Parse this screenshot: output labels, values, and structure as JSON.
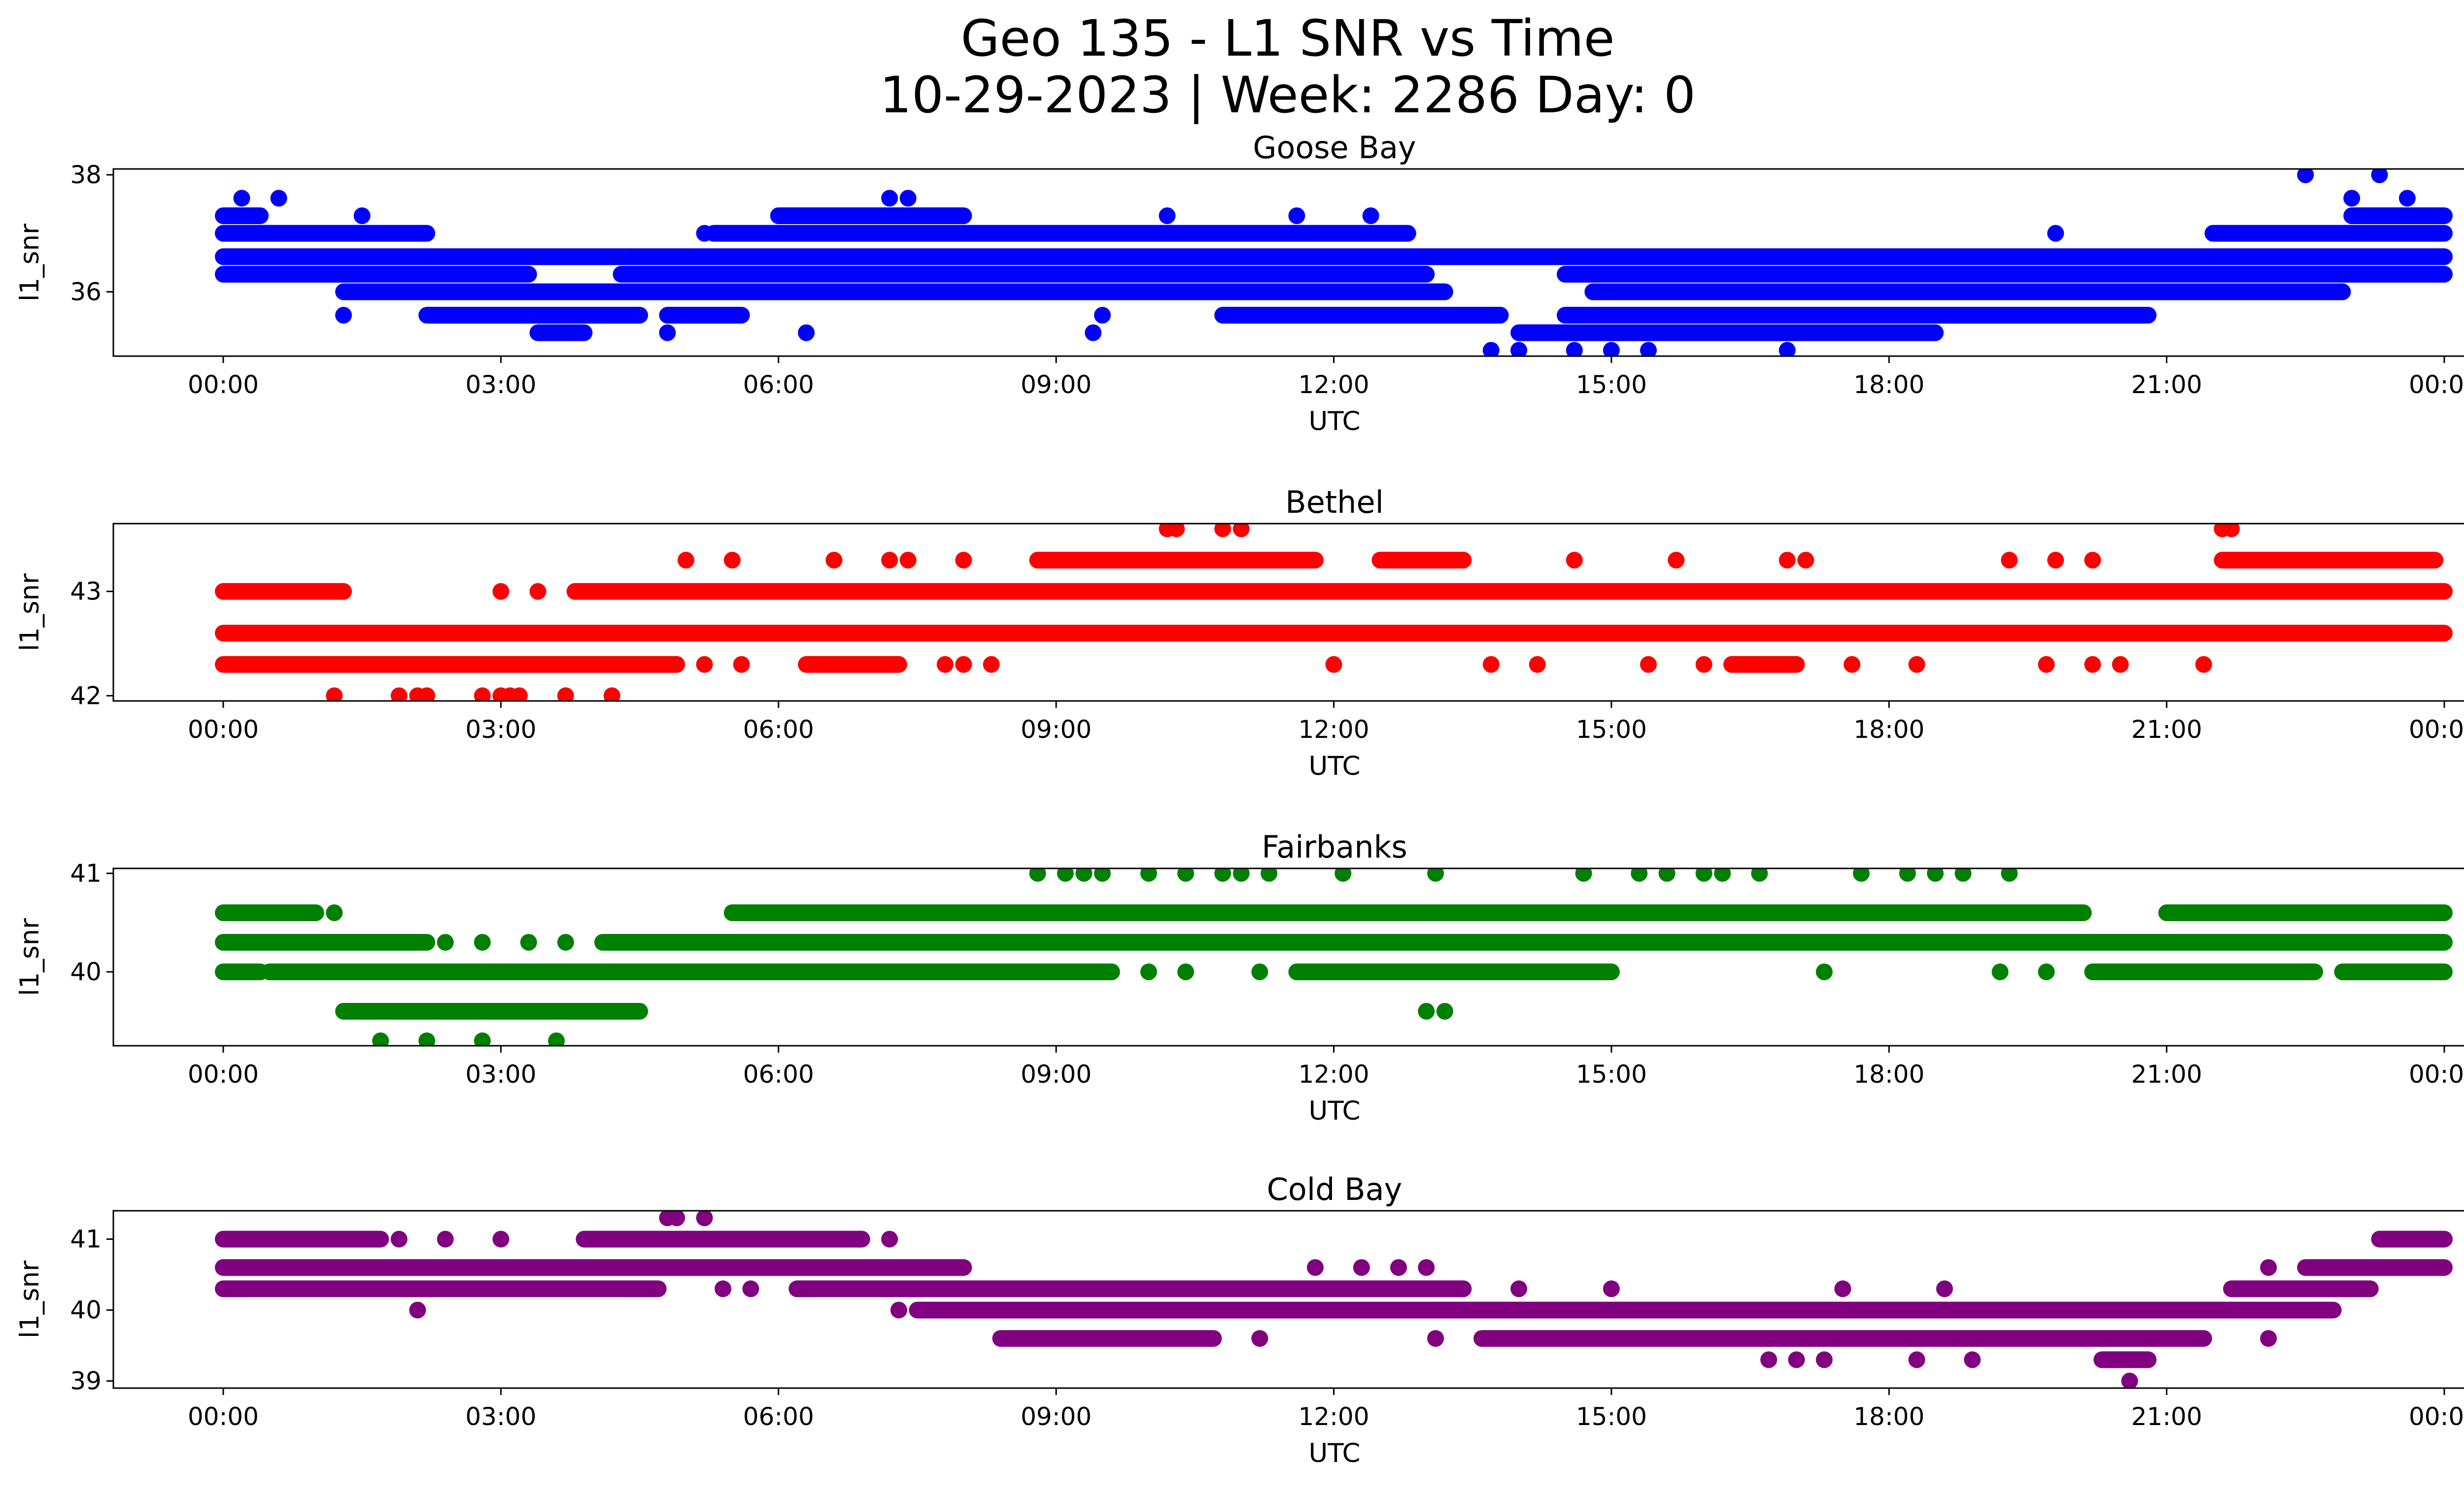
{
  "figure": {
    "title_line1": "Geo 135 - L1 SNR vs Time",
    "title_line2": "10-29-2023 | Week: 2286 Day: 0"
  },
  "chart_data": [
    {
      "type": "scatter",
      "title": "Goose Bay",
      "xlabel": "UTC",
      "ylabel": "l1_snr",
      "color": "#0000ff",
      "xlim": [
        "00:00",
        "24:00"
      ],
      "ylim": [
        34.9,
        38.1
      ],
      "x_ticks": [
        "00:00",
        "03:00",
        "06:00",
        "09:00",
        "12:00",
        "15:00",
        "18:00",
        "21:00",
        "00:00"
      ],
      "y_ticks": [
        36,
        38
      ],
      "x_unit": "hours UTC",
      "series": [
        {
          "levels": [
            {
              "y": 36.6,
              "segments": [
                [
                  0.0,
                  24.0
                ]
              ]
            },
            {
              "y": 36.3,
              "segments": [
                [
                  0.0,
                  3.3
                ],
                [
                  4.3,
                  13.0
                ],
                [
                  14.5,
                  24.0
                ]
              ]
            },
            {
              "y": 36.0,
              "segments": [
                [
                  1.3,
                  13.2
                ],
                [
                  14.8,
                  22.9
                ]
              ]
            },
            {
              "y": 35.6,
              "segments": [
                [
                  2.2,
                  4.5
                ],
                [
                  4.8,
                  5.6
                ],
                [
                  10.8,
                  13.8
                ],
                [
                  14.5,
                  20.8
                ]
              ]
            },
            {
              "y": 35.3,
              "segments": [
                [
                  3.4,
                  3.9
                ],
                [
                  14.0,
                  18.5
                ]
              ]
            },
            {
              "y": 37.0,
              "segments": [
                [
                  0.0,
                  2.2
                ],
                [
                  5.3,
                  12.8
                ],
                [
                  21.5,
                  24.0
                ]
              ]
            },
            {
              "y": 37.3,
              "segments": [
                [
                  0.0,
                  0.4
                ],
                [
                  6.0,
                  8.0
                ],
                [
                  23.0,
                  24.0
                ]
              ]
            }
          ],
          "points": [
            {
              "x": 0.2,
              "y": 37.6
            },
            {
              "x": 0.6,
              "y": 37.6
            },
            {
              "x": 1.5,
              "y": 37.3
            },
            {
              "x": 7.2,
              "y": 37.6
            },
            {
              "x": 7.4,
              "y": 37.6
            },
            {
              "x": 10.2,
              "y": 37.3
            },
            {
              "x": 11.6,
              "y": 37.3
            },
            {
              "x": 12.4,
              "y": 37.3
            },
            {
              "x": 13.7,
              "y": 35.0
            },
            {
              "x": 14.0,
              "y": 35.0
            },
            {
              "x": 14.6,
              "y": 35.0
            },
            {
              "x": 15.0,
              "y": 35.0
            },
            {
              "x": 15.4,
              "y": 35.0
            },
            {
              "x": 16.9,
              "y": 35.0
            },
            {
              "x": 22.5,
              "y": 38.0
            },
            {
              "x": 23.3,
              "y": 38.0
            },
            {
              "x": 23.0,
              "y": 37.6
            },
            {
              "x": 23.6,
              "y": 37.6
            },
            {
              "x": 3.7,
              "y": 35.3
            },
            {
              "x": 4.8,
              "y": 35.3
            },
            {
              "x": 6.3,
              "y": 35.3
            },
            {
              "x": 9.4,
              "y": 35.3
            },
            {
              "x": 9.5,
              "y": 35.6
            },
            {
              "x": 1.3,
              "y": 35.6
            },
            {
              "x": 4.4,
              "y": 36.6
            },
            {
              "x": 5.2,
              "y": 37.0
            },
            {
              "x": 19.8,
              "y": 37.0
            }
          ]
        }
      ]
    },
    {
      "type": "scatter",
      "title": "Bethel",
      "xlabel": "UTC",
      "ylabel": "l1_snr",
      "color": "#ff0000",
      "xlim": [
        "00:00",
        "24:00"
      ],
      "ylim": [
        41.95,
        43.65
      ],
      "x_ticks": [
        "00:00",
        "03:00",
        "06:00",
        "09:00",
        "12:00",
        "15:00",
        "18:00",
        "21:00",
        "00:00"
      ],
      "y_ticks": [
        42,
        43
      ],
      "x_unit": "hours UTC",
      "series": [
        {
          "levels": [
            {
              "y": 42.6,
              "segments": [
                [
                  0.0,
                  24.0
                ]
              ]
            },
            {
              "y": 43.0,
              "segments": [
                [
                  0.0,
                  1.3
                ],
                [
                  3.8,
                  24.0
                ]
              ]
            },
            {
              "y": 42.3,
              "segments": [
                [
                  0.0,
                  4.9
                ],
                [
                  6.3,
                  7.3
                ],
                [
                  16.3,
                  17.0
                ]
              ]
            },
            {
              "y": 43.3,
              "segments": [
                [
                  8.8,
                  11.8
                ],
                [
                  12.5,
                  13.4
                ],
                [
                  21.6,
                  23.9
                ]
              ]
            }
          ],
          "points": [
            {
              "x": 1.2,
              "y": 42.0
            },
            {
              "x": 1.9,
              "y": 42.0
            },
            {
              "x": 2.1,
              "y": 42.0
            },
            {
              "x": 2.2,
              "y": 42.0
            },
            {
              "x": 2.8,
              "y": 42.0
            },
            {
              "x": 3.0,
              "y": 42.0
            },
            {
              "x": 3.1,
              "y": 42.0
            },
            {
              "x": 3.2,
              "y": 42.0
            },
            {
              "x": 3.7,
              "y": 42.0
            },
            {
              "x": 4.2,
              "y": 42.0
            },
            {
              "x": 10.2,
              "y": 43.6
            },
            {
              "x": 10.3,
              "y": 43.6
            },
            {
              "x": 10.8,
              "y": 43.6
            },
            {
              "x": 11.0,
              "y": 43.6
            },
            {
              "x": 21.6,
              "y": 43.6
            },
            {
              "x": 21.7,
              "y": 43.6
            },
            {
              "x": 5.0,
              "y": 43.3
            },
            {
              "x": 5.5,
              "y": 43.3
            },
            {
              "x": 6.6,
              "y": 43.3
            },
            {
              "x": 7.2,
              "y": 43.3
            },
            {
              "x": 7.4,
              "y": 43.3
            },
            {
              "x": 8.0,
              "y": 43.3
            },
            {
              "x": 14.6,
              "y": 43.3
            },
            {
              "x": 15.7,
              "y": 43.3
            },
            {
              "x": 16.9,
              "y": 43.3
            },
            {
              "x": 17.1,
              "y": 43.3
            },
            {
              "x": 19.3,
              "y": 43.3
            },
            {
              "x": 19.8,
              "y": 43.3
            },
            {
              "x": 20.2,
              "y": 43.3
            },
            {
              "x": 3.0,
              "y": 43.0
            },
            {
              "x": 3.4,
              "y": 43.0
            },
            {
              "x": 5.2,
              "y": 42.3
            },
            {
              "x": 5.6,
              "y": 42.3
            },
            {
              "x": 7.8,
              "y": 42.3
            },
            {
              "x": 8.0,
              "y": 42.3
            },
            {
              "x": 8.3,
              "y": 42.3
            },
            {
              "x": 12.0,
              "y": 42.3
            },
            {
              "x": 13.7,
              "y": 42.3
            },
            {
              "x": 14.2,
              "y": 42.3
            },
            {
              "x": 15.4,
              "y": 42.3
            },
            {
              "x": 16.0,
              "y": 42.3
            },
            {
              "x": 17.6,
              "y": 42.3
            },
            {
              "x": 18.3,
              "y": 42.3
            },
            {
              "x": 19.7,
              "y": 42.3
            },
            {
              "x": 20.2,
              "y": 42.3
            },
            {
              "x": 20.5,
              "y": 42.3
            },
            {
              "x": 21.4,
              "y": 42.3
            }
          ]
        }
      ]
    },
    {
      "type": "scatter",
      "title": "Fairbanks",
      "xlabel": "UTC",
      "ylabel": "l1_snr",
      "color": "#008000",
      "xlim": [
        "00:00",
        "24:00"
      ],
      "ylim": [
        39.25,
        41.05
      ],
      "x_ticks": [
        "00:00",
        "03:00",
        "06:00",
        "09:00",
        "12:00",
        "15:00",
        "18:00",
        "21:00",
        "00:00"
      ],
      "y_ticks": [
        40,
        41
      ],
      "x_unit": "hours UTC",
      "series": [
        {
          "levels": [
            {
              "y": 40.3,
              "segments": [
                [
                  0.0,
                  2.2
                ],
                [
                  4.1,
                  24.0
                ]
              ]
            },
            {
              "y": 40.6,
              "segments": [
                [
                  0.0,
                  1.0
                ],
                [
                  5.5,
                  20.1
                ],
                [
                  21.0,
                  24.0
                ]
              ]
            },
            {
              "y": 40.0,
              "segments": [
                [
                  0.0,
                  0.4
                ],
                [
                  0.5,
                  9.6
                ],
                [
                  11.6,
                  15.0
                ],
                [
                  20.2,
                  22.6
                ],
                [
                  22.9,
                  24.0
                ]
              ]
            },
            {
              "y": 39.6,
              "segments": [
                [
                  1.3,
                  4.5
                ]
              ]
            }
          ],
          "points": [
            {
              "x": 1.7,
              "y": 39.3
            },
            {
              "x": 2.2,
              "y": 39.3
            },
            {
              "x": 2.8,
              "y": 39.3
            },
            {
              "x": 3.6,
              "y": 39.3
            },
            {
              "x": 13.0,
              "y": 39.6
            },
            {
              "x": 13.2,
              "y": 39.6
            },
            {
              "x": 8.8,
              "y": 41.0
            },
            {
              "x": 9.1,
              "y": 41.0
            },
            {
              "x": 9.3,
              "y": 41.0
            },
            {
              "x": 9.5,
              "y": 41.0
            },
            {
              "x": 10.0,
              "y": 41.0
            },
            {
              "x": 10.4,
              "y": 41.0
            },
            {
              "x": 10.8,
              "y": 41.0
            },
            {
              "x": 11.0,
              "y": 41.0
            },
            {
              "x": 11.3,
              "y": 41.0
            },
            {
              "x": 12.1,
              "y": 41.0
            },
            {
              "x": 13.1,
              "y": 41.0
            },
            {
              "x": 14.7,
              "y": 41.0
            },
            {
              "x": 15.3,
              "y": 41.0
            },
            {
              "x": 15.6,
              "y": 41.0
            },
            {
              "x": 16.0,
              "y": 41.0
            },
            {
              "x": 16.2,
              "y": 41.0
            },
            {
              "x": 16.6,
              "y": 41.0
            },
            {
              "x": 17.7,
              "y": 41.0
            },
            {
              "x": 18.2,
              "y": 41.0
            },
            {
              "x": 18.5,
              "y": 41.0
            },
            {
              "x": 18.8,
              "y": 41.0
            },
            {
              "x": 19.3,
              "y": 41.0
            },
            {
              "x": 1.2,
              "y": 40.6
            },
            {
              "x": 2.4,
              "y": 40.3
            },
            {
              "x": 2.8,
              "y": 40.3
            },
            {
              "x": 3.3,
              "y": 40.3
            },
            {
              "x": 3.7,
              "y": 40.3
            },
            {
              "x": 10.0,
              "y": 40.0
            },
            {
              "x": 10.4,
              "y": 40.0
            },
            {
              "x": 11.2,
              "y": 40.0
            },
            {
              "x": 17.3,
              "y": 40.0
            },
            {
              "x": 19.2,
              "y": 40.0
            },
            {
              "x": 19.7,
              "y": 40.0
            }
          ]
        }
      ]
    },
    {
      "type": "scatter",
      "title": "Cold Bay",
      "xlabel": "UTC",
      "ylabel": "l1_snr",
      "color": "#800080",
      "xlim": [
        "00:00",
        "24:00"
      ],
      "ylim": [
        38.9,
        41.4
      ],
      "x_ticks": [
        "00:00",
        "03:00",
        "06:00",
        "09:00",
        "12:00",
        "15:00",
        "18:00",
        "21:00",
        "00:00"
      ],
      "y_ticks": [
        39,
        40,
        41
      ],
      "x_unit": "hours UTC",
      "series": [
        {
          "levels": [
            {
              "y": 40.6,
              "segments": [
                [
                  0.0,
                  8.0
                ],
                [
                  22.5,
                  24.0
                ]
              ]
            },
            {
              "y": 40.3,
              "segments": [
                [
                  0.0,
                  4.7
                ],
                [
                  6.2,
                  13.4
                ],
                [
                  21.7,
                  23.2
                ]
              ]
            },
            {
              "y": 40.0,
              "segments": [
                [
                  7.5,
                  22.8
                ]
              ]
            },
            {
              "y": 39.6,
              "segments": [
                [
                  8.4,
                  10.7
                ],
                [
                  13.6,
                  21.4
                ]
              ]
            },
            {
              "y": 41.0,
              "segments": [
                [
                  0.0,
                  1.7
                ],
                [
                  3.9,
                  6.9
                ],
                [
                  23.3,
                  24.0
                ]
              ]
            },
            {
              "y": 39.3,
              "segments": [
                [
                  20.3,
                  20.8
                ]
              ]
            }
          ],
          "points": [
            {
              "x": 4.8,
              "y": 41.3
            },
            {
              "x": 4.9,
              "y": 41.3
            },
            {
              "x": 5.2,
              "y": 41.3
            },
            {
              "x": 20.6,
              "y": 39.0
            },
            {
              "x": 2.1,
              "y": 40.0
            },
            {
              "x": 7.3,
              "y": 40.0
            },
            {
              "x": 11.2,
              "y": 39.6
            },
            {
              "x": 13.1,
              "y": 39.6
            },
            {
              "x": 22.1,
              "y": 39.6
            },
            {
              "x": 11.8,
              "y": 40.6
            },
            {
              "x": 12.3,
              "y": 40.6
            },
            {
              "x": 12.7,
              "y": 40.6
            },
            {
              "x": 13.0,
              "y": 40.6
            },
            {
              "x": 22.1,
              "y": 40.6
            },
            {
              "x": 7.2,
              "y": 41.0
            },
            {
              "x": 5.4,
              "y": 40.3
            },
            {
              "x": 5.7,
              "y": 40.3
            },
            {
              "x": 14.0,
              "y": 40.3
            },
            {
              "x": 15.0,
              "y": 40.3
            },
            {
              "x": 17.5,
              "y": 40.3
            },
            {
              "x": 18.6,
              "y": 40.3
            },
            {
              "x": 16.7,
              "y": 39.3
            },
            {
              "x": 17.0,
              "y": 39.3
            },
            {
              "x": 17.3,
              "y": 39.3
            },
            {
              "x": 18.3,
              "y": 39.3
            },
            {
              "x": 18.9,
              "y": 39.3
            },
            {
              "x": 3.0,
              "y": 41.0
            },
            {
              "x": 2.4,
              "y": 41.0
            },
            {
              "x": 1.9,
              "y": 41.0
            }
          ]
        }
      ]
    }
  ]
}
